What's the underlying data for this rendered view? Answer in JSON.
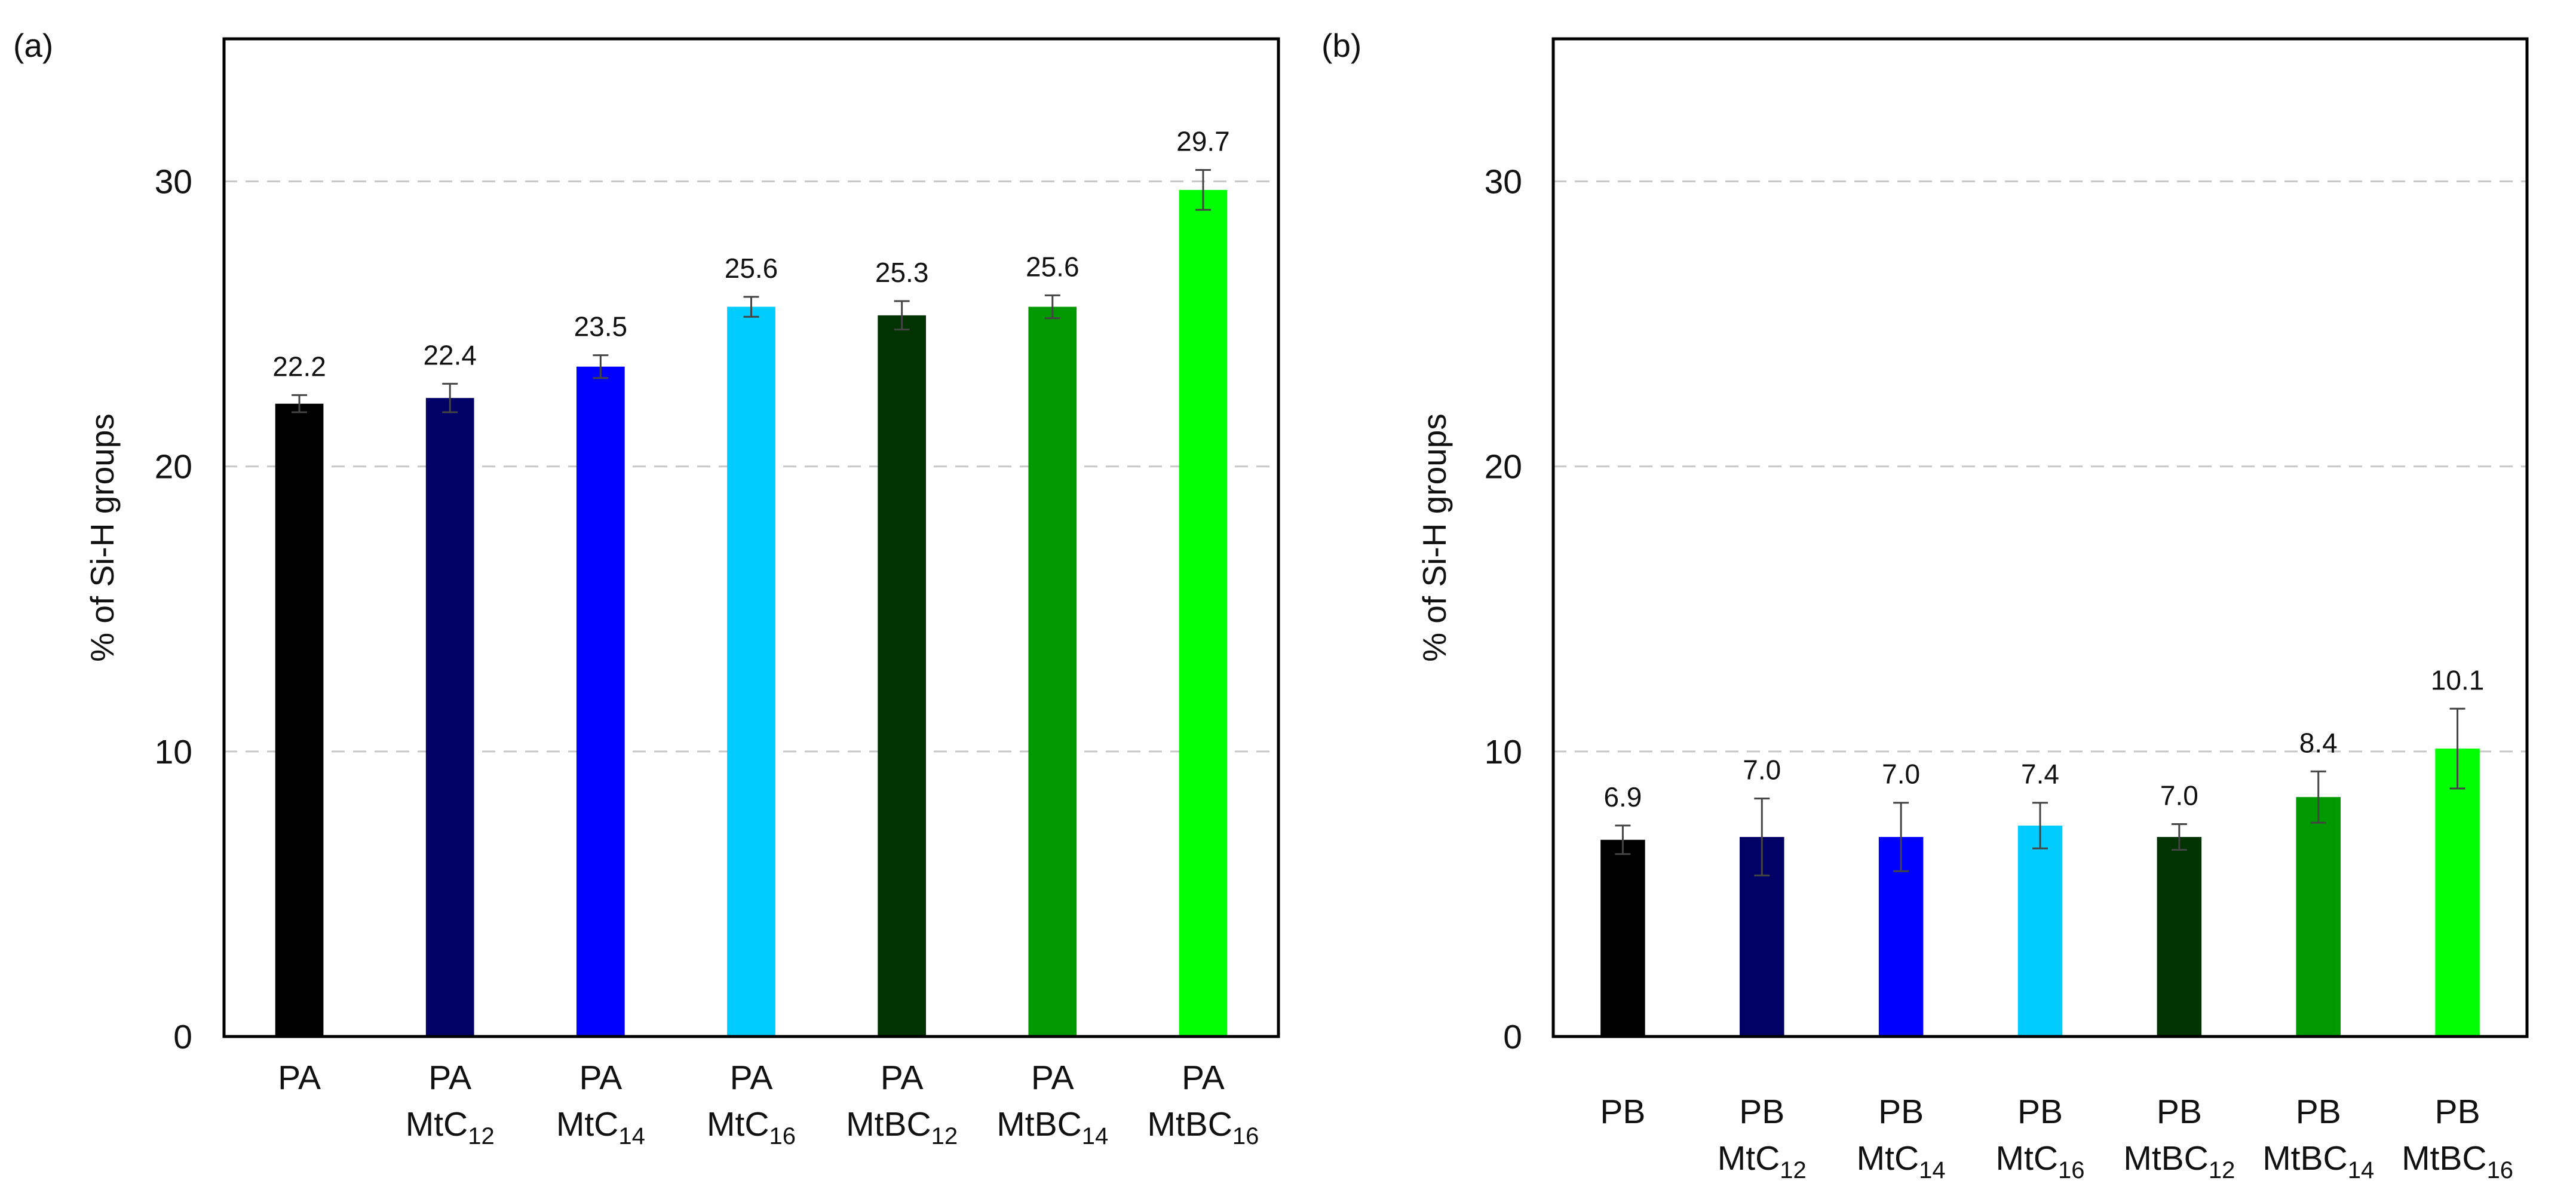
{
  "chart_data": [
    {
      "type": "bar",
      "panel_label": "(a)",
      "ylabel": "% of Si-H groups",
      "ylim": [
        0,
        35
      ],
      "yticks": [
        0,
        10,
        20,
        30
      ],
      "grid": "horizontal dashed",
      "categories": [
        {
          "line1": "PA",
          "base": "",
          "sub": ""
        },
        {
          "line1": "PA",
          "base": "MtC",
          "sub": "12"
        },
        {
          "line1": "PA",
          "base": "MtC",
          "sub": "14"
        },
        {
          "line1": "PA",
          "base": "MtC",
          "sub": "16"
        },
        {
          "line1": "PA",
          "base": "MtBC",
          "sub": "12"
        },
        {
          "line1": "PA",
          "base": "MtBC",
          "sub": "14"
        },
        {
          "line1": "PA",
          "base": "MtBC",
          "sub": "16"
        }
      ],
      "values": [
        22.2,
        22.4,
        23.5,
        25.6,
        25.3,
        25.6,
        29.7
      ],
      "value_labels": [
        "22.2",
        "22.4",
        "23.5",
        "25.6",
        "25.3",
        "25.6",
        "29.7"
      ],
      "errors": [
        0.3,
        0.5,
        0.4,
        0.35,
        0.5,
        0.4,
        0.7
      ],
      "colors": [
        "#000000",
        "#000066",
        "#0000ff",
        "#00ccff",
        "#003300",
        "#009900",
        "#00ff00"
      ]
    },
    {
      "type": "bar",
      "panel_label": "(b)",
      "ylabel": "% of Si-H groups",
      "ylim": [
        0,
        35
      ],
      "yticks": [
        0,
        10,
        20,
        30
      ],
      "grid": "horizontal dashed",
      "categories": [
        {
          "line1": "PB",
          "base": "",
          "sub": ""
        },
        {
          "line1": "PB",
          "base": "MtC",
          "sub": "12"
        },
        {
          "line1": "PB",
          "base": "MtC",
          "sub": "14"
        },
        {
          "line1": "PB",
          "base": "MtC",
          "sub": "16"
        },
        {
          "line1": "PB",
          "base": "MtBC",
          "sub": "12"
        },
        {
          "line1": "PB",
          "base": "MtBC",
          "sub": "14"
        },
        {
          "line1": "PB",
          "base": "MtBC",
          "sub": "16"
        }
      ],
      "values": [
        6.9,
        7.0,
        7.0,
        7.4,
        7.0,
        8.4,
        10.1
      ],
      "value_labels": [
        "6.9",
        "7.0",
        "7.0",
        "7.4",
        "7.0",
        "8.4",
        "10.1"
      ],
      "errors": [
        0.5,
        1.35,
        1.2,
        0.8,
        0.45,
        0.9,
        1.4
      ],
      "colors": [
        "#000000",
        "#000066",
        "#0000ff",
        "#00ccff",
        "#003300",
        "#009900",
        "#00ff00"
      ]
    }
  ]
}
